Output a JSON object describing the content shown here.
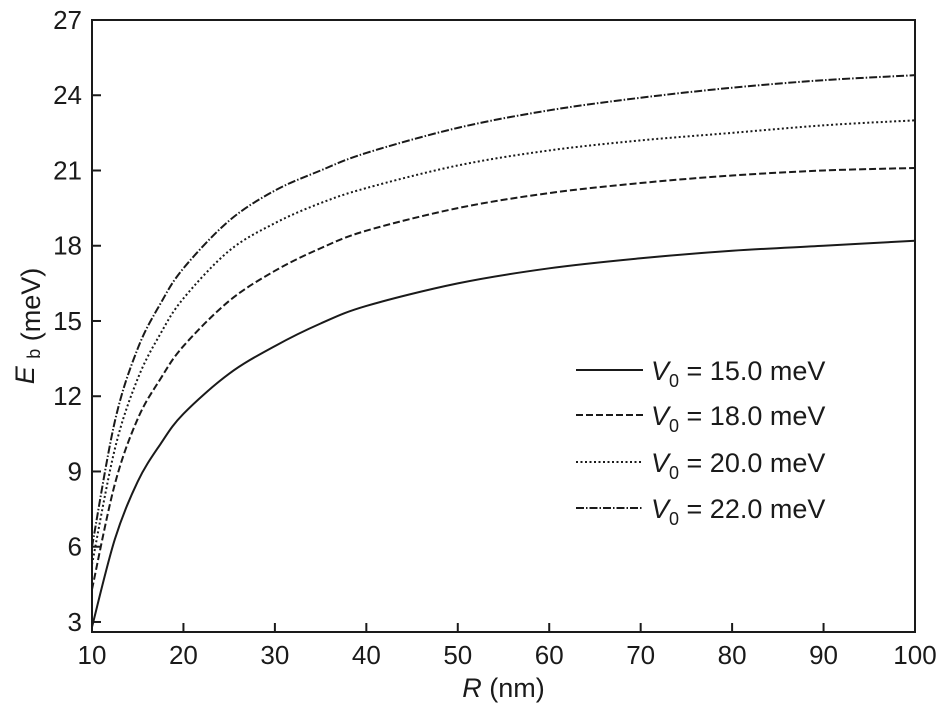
{
  "chart_data": {
    "type": "line",
    "xlabel": {
      "var": "R",
      "unit": "(nm)"
    },
    "ylabel": {
      "var": "E",
      "sub": "b",
      "unit": "(meV)"
    },
    "xlim": [
      10,
      100
    ],
    "ylim": [
      2.6,
      27
    ],
    "x_ticks": [
      10,
      20,
      30,
      40,
      50,
      60,
      70,
      80,
      90,
      100
    ],
    "y_ticks": [
      3,
      6,
      9,
      12,
      15,
      18,
      21,
      24,
      27
    ],
    "grid": false,
    "legend": {
      "position": "center-right",
      "entries": [
        {
          "prefix": "V",
          "sub": "0",
          "text": " = 15.0 meV",
          "style": "solid"
        },
        {
          "prefix": "V",
          "sub": "0",
          "text": " = 18.0 meV",
          "style": "dashed"
        },
        {
          "prefix": "V",
          "sub": "0",
          "text": " = 20.0 meV",
          "style": "dotted"
        },
        {
          "prefix": "V",
          "sub": "0",
          "text": " = 22.0 meV",
          "style": "dashdot"
        }
      ]
    },
    "x": [
      10,
      12.5,
      15,
      17.5,
      20,
      25,
      30,
      35,
      40,
      50,
      60,
      70,
      80,
      90,
      100
    ],
    "series": [
      {
        "label_index": 0,
        "style": "solid",
        "values": [
          2.8,
          6.3,
          8.6,
          10.1,
          11.3,
          12.9,
          14.0,
          14.9,
          15.6,
          16.5,
          17.1,
          17.5,
          17.8,
          18.0,
          18.2
        ]
      },
      {
        "label_index": 1,
        "style": "dashed",
        "values": [
          4.3,
          8.5,
          11.1,
          12.7,
          14.0,
          15.8,
          17.0,
          17.9,
          18.6,
          19.5,
          20.1,
          20.5,
          20.8,
          21.0,
          21.1
        ]
      },
      {
        "label_index": 2,
        "style": "dotted",
        "values": [
          5.3,
          9.9,
          12.7,
          14.5,
          15.9,
          17.8,
          18.9,
          19.7,
          20.3,
          21.2,
          21.8,
          22.2,
          22.5,
          22.8,
          23.0
        ]
      },
      {
        "label_index": 3,
        "style": "dashdot",
        "values": [
          6.0,
          11.0,
          13.9,
          15.7,
          17.1,
          19.0,
          20.2,
          21.0,
          21.7,
          22.7,
          23.4,
          23.9,
          24.3,
          24.6,
          24.8
        ]
      }
    ]
  }
}
